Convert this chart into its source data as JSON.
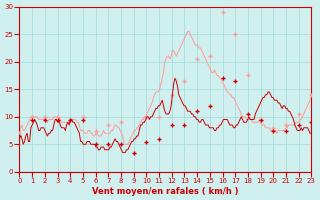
{
  "xlabel": "Vent moyen/en rafales ( km/h )",
  "ylabel": "",
  "xlim": [
    0,
    23
  ],
  "ylim": [
    0,
    30
  ],
  "yticks": [
    0,
    5,
    10,
    15,
    20,
    25,
    30
  ],
  "xticks": [
    0,
    1,
    2,
    3,
    4,
    5,
    6,
    7,
    8,
    9,
    10,
    11,
    12,
    13,
    14,
    15,
    16,
    17,
    18,
    19,
    20,
    21,
    22,
    23
  ],
  "bg_color": "#d0f0f0",
  "grid_color": "#a0d8d8",
  "axis_color": "#cc0000",
  "line1_color": "#ff9999",
  "line2_color": "#cc0000",
  "wind_avg": [
    6.5,
    9.5,
    9.5,
    9.5,
    9.5,
    9.5,
    5.0,
    5.0,
    5.0,
    3.5,
    5.5,
    6.0,
    8.5,
    8.5,
    11.0,
    12.0,
    17.0,
    16.5,
    10.5,
    9.5,
    7.5,
    7.5,
    8.5,
    9.0
  ],
  "wind_gust": [
    7.0,
    10.0,
    10.0,
    10.0,
    9.5,
    10.0,
    7.5,
    8.5,
    9.0,
    3.5,
    10.0,
    10.0,
    14.0,
    16.5,
    20.5,
    21.0,
    29.0,
    25.0,
    17.5,
    9.5,
    8.0,
    8.5,
    10.5,
    14.0
  ],
  "wind_avg_detail": [
    6.5,
    6.5,
    6.0,
    5.0,
    5.5,
    6.5,
    7.0,
    5.5,
    5.5,
    8.0,
    8.5,
    9.0,
    9.5,
    9.0,
    8.5,
    7.5,
    7.5,
    8.0,
    8.0,
    8.0,
    7.5,
    7.0,
    6.5,
    7.0,
    7.0,
    7.5,
    7.5,
    8.5,
    9.5,
    9.5,
    9.0,
    9.5,
    8.5,
    8.0,
    8.0,
    8.0,
    7.5,
    8.5,
    9.0,
    8.5,
    9.5,
    9.5,
    9.0,
    9.0,
    8.5,
    8.0,
    7.5,
    7.0,
    5.5,
    5.5,
    5.0,
    5.0,
    5.0,
    5.5,
    5.5,
    5.5,
    5.0,
    5.0,
    5.0,
    5.0,
    4.5,
    4.5,
    4.0,
    4.0,
    4.5,
    4.5,
    4.5,
    4.0,
    4.0,
    4.0,
    4.0,
    4.5,
    4.5,
    5.0,
    5.5,
    6.0,
    5.5,
    5.5,
    5.0,
    4.5,
    4.0,
    3.5,
    3.5,
    3.5,
    4.0,
    4.0,
    4.5,
    5.0,
    5.5,
    5.5,
    6.0,
    6.0,
    6.5,
    6.5,
    7.5,
    8.5,
    8.5,
    9.0,
    9.0,
    9.5,
    10.0,
    10.0,
    9.5,
    10.0,
    10.0,
    10.5,
    11.0,
    11.5,
    11.5,
    12.0,
    12.0,
    12.5,
    13.0,
    12.0,
    11.0,
    10.5,
    10.5,
    10.5,
    11.0,
    12.0,
    14.0,
    16.0,
    17.0,
    16.5,
    15.5,
    14.0,
    13.5,
    13.0,
    12.5,
    12.0,
    12.0,
    11.5,
    11.0,
    11.0,
    11.0,
    10.5,
    10.5,
    10.0,
    10.0,
    9.5,
    9.5,
    9.0,
    9.0,
    9.5,
    9.5,
    9.0,
    8.5,
    8.5,
    8.5,
    8.0,
    8.0,
    8.0,
    8.0,
    7.5,
    7.5,
    8.0,
    8.0,
    8.5,
    8.5,
    9.0,
    9.5,
    9.5,
    9.5,
    9.5,
    9.0,
    8.5,
    8.5,
    8.5,
    8.0,
    8.0,
    8.5,
    8.5,
    9.0,
    9.5,
    10.0,
    9.5,
    9.0,
    9.0,
    9.0,
    9.5,
    10.0,
    9.5,
    9.5,
    9.5,
    9.5,
    10.5,
    11.0,
    11.5,
    12.0,
    12.5,
    13.0,
    13.5,
    13.5,
    14.0,
    14.0,
    14.5,
    14.5,
    14.0,
    13.5,
    13.5,
    13.0,
    13.0,
    13.0,
    12.5,
    12.5,
    12.0,
    11.5,
    12.0,
    12.0,
    11.5,
    11.5,
    11.0,
    11.0,
    10.5,
    10.0,
    9.5,
    8.5,
    8.0,
    7.5,
    7.5,
    7.5,
    8.0,
    7.5,
    8.0,
    8.0,
    8.0,
    8.0,
    7.5,
    7.0,
    7.0
  ],
  "wind_gust_detail": [
    7.0,
    8.0,
    8.5,
    7.5,
    7.5,
    8.0,
    8.5,
    9.0,
    9.5,
    10.0,
    10.0,
    10.0,
    10.0,
    10.0,
    10.0,
    9.5,
    9.5,
    9.5,
    9.5,
    9.5,
    9.5,
    9.0,
    9.0,
    9.5,
    9.5,
    9.5,
    9.5,
    10.0,
    10.0,
    10.0,
    10.0,
    10.0,
    9.5,
    9.0,
    9.0,
    9.0,
    9.0,
    9.0,
    9.0,
    9.0,
    9.5,
    9.5,
    9.5,
    9.5,
    9.5,
    9.0,
    9.0,
    8.5,
    7.5,
    7.5,
    7.5,
    7.0,
    7.0,
    7.0,
    7.5,
    7.5,
    7.0,
    7.0,
    6.5,
    6.5,
    7.0,
    7.0,
    6.5,
    6.5,
    6.5,
    7.0,
    7.5,
    7.0,
    7.0,
    7.0,
    7.0,
    7.0,
    7.5,
    7.5,
    8.0,
    8.5,
    8.5,
    8.0,
    8.0,
    7.5,
    7.0,
    6.5,
    5.0,
    5.0,
    5.0,
    5.0,
    5.5,
    6.0,
    6.5,
    7.0,
    7.5,
    7.5,
    8.0,
    8.0,
    8.5,
    9.0,
    9.5,
    9.5,
    10.0,
    10.0,
    10.5,
    11.0,
    11.5,
    12.0,
    12.5,
    13.5,
    14.0,
    14.5,
    14.5,
    14.5,
    15.0,
    16.0,
    17.0,
    18.0,
    20.0,
    20.5,
    21.0,
    21.0,
    20.5,
    21.0,
    22.0,
    22.0,
    21.5,
    21.0,
    21.5,
    22.0,
    22.5,
    23.0,
    23.5,
    24.0,
    24.5,
    25.0,
    25.5,
    25.5,
    25.0,
    24.5,
    24.0,
    23.5,
    23.0,
    23.0,
    23.0,
    22.5,
    22.5,
    22.0,
    21.5,
    21.0,
    20.5,
    20.0,
    19.5,
    19.0,
    18.5,
    18.0,
    18.0,
    18.5,
    18.0,
    17.5,
    17.5,
    17.0,
    17.0,
    16.5,
    16.0,
    15.5,
    15.0,
    14.5,
    14.5,
    14.0,
    14.0,
    13.5,
    13.5,
    13.0,
    12.5,
    12.0,
    11.5,
    11.0,
    10.5,
    10.0,
    10.0,
    10.0,
    9.5,
    9.5,
    9.5,
    9.5,
    9.5,
    9.0,
    9.0,
    9.0,
    9.0,
    9.0,
    9.5,
    9.0,
    8.5,
    8.5,
    8.5,
    8.0,
    8.0,
    8.0,
    8.0,
    7.5,
    7.5,
    7.5,
    7.5,
    7.5,
    7.0,
    7.5,
    7.5,
    7.5,
    7.5,
    7.5,
    7.5,
    8.0,
    8.0,
    8.5,
    8.5,
    8.5,
    8.5,
    8.5,
    8.5,
    9.0,
    9.0,
    9.0,
    9.5,
    9.5,
    10.0,
    10.5,
    11.0,
    11.5,
    12.0,
    12.5,
    13.0,
    13.5
  ]
}
